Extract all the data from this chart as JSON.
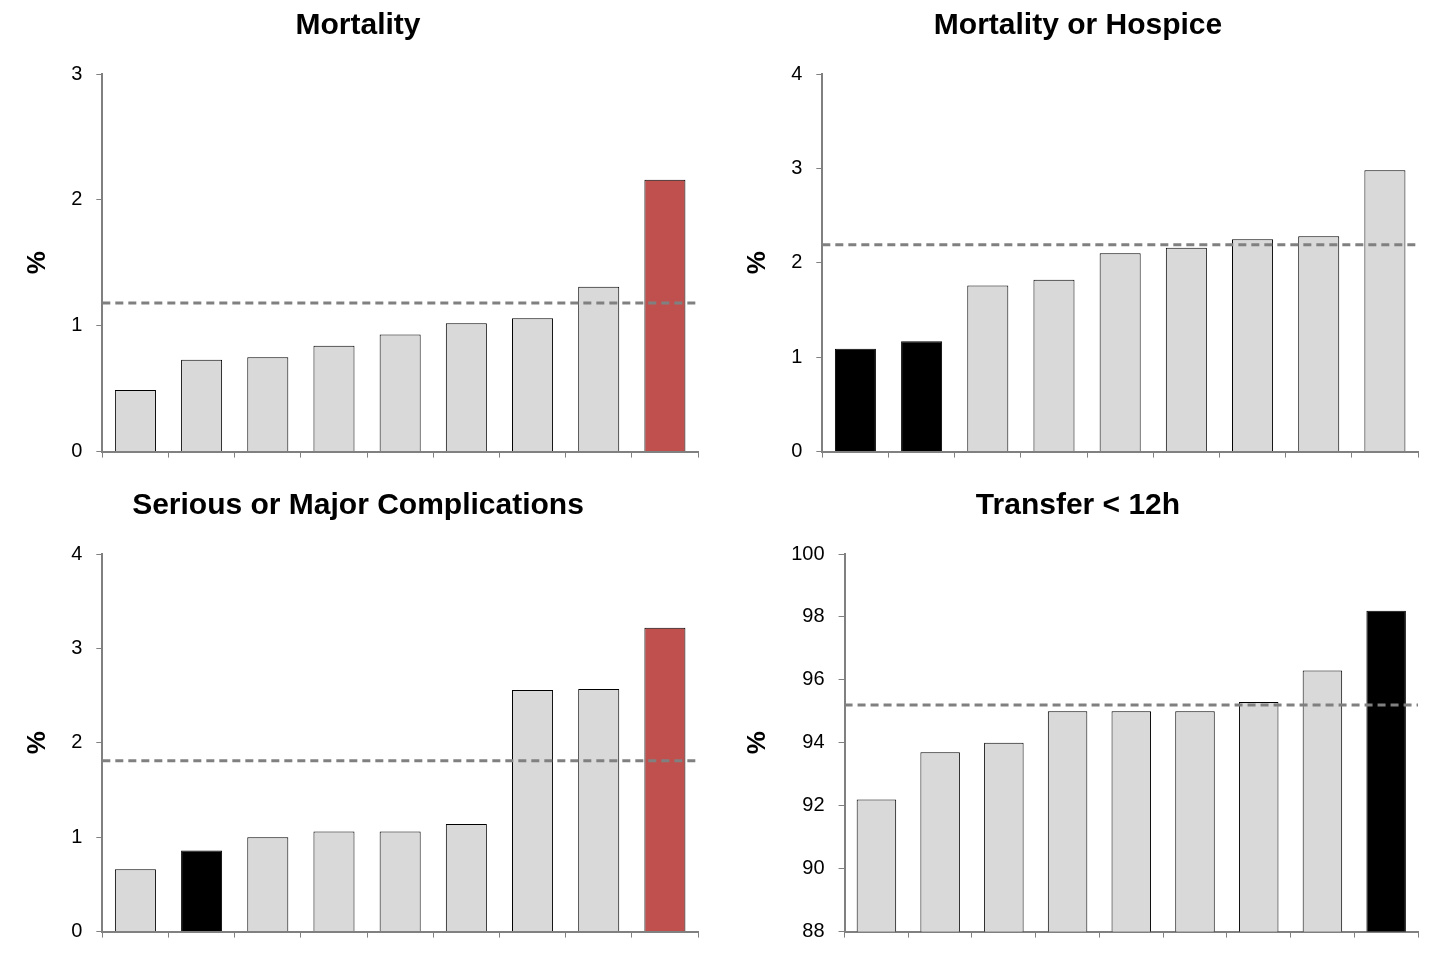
{
  "chart_data": [
    {
      "type": "bar",
      "title": "Mortality",
      "ylabel": "%",
      "categories": [
        null,
        null,
        null,
        null,
        null,
        null,
        null,
        null,
        null
      ],
      "values": [
        0.49,
        0.73,
        0.75,
        0.84,
        0.93,
        1.02,
        1.06,
        1.31,
        2.16
      ],
      "colors": [
        "#d9d9d9",
        "#d9d9d9",
        "#d9d9d9",
        "#d9d9d9",
        "#d9d9d9",
        "#d9d9d9",
        "#d9d9d9",
        "#d9d9d9",
        "#c0504d"
      ],
      "ylim": [
        0,
        3
      ],
      "yticks": [
        0,
        1,
        2,
        3
      ],
      "grid": false,
      "legend": false,
      "ref_lines": [
        {
          "axis": "y",
          "value": 1.18,
          "color": "#808080",
          "line_style": "dashed"
        }
      ]
    },
    {
      "type": "bar",
      "title": "Mortality or Hospice",
      "ylabel": "%",
      "categories": [
        null,
        null,
        null,
        null,
        null,
        null,
        null,
        null,
        null
      ],
      "values": [
        1.09,
        1.17,
        1.76,
        1.82,
        2.1,
        2.16,
        2.25,
        2.28,
        2.98
      ],
      "colors": [
        "#000000",
        "#000000",
        "#d9d9d9",
        "#d9d9d9",
        "#d9d9d9",
        "#d9d9d9",
        "#d9d9d9",
        "#d9d9d9",
        "#d9d9d9"
      ],
      "ylim": [
        0,
        4
      ],
      "yticks": [
        0,
        1,
        2,
        3,
        4
      ],
      "grid": false,
      "legend": false,
      "ref_lines": [
        {
          "axis": "y",
          "value": 2.19,
          "color": "#808080",
          "line_style": "dashed"
        }
      ]
    },
    {
      "type": "bar",
      "title": "Serious or Major Complications",
      "ylabel": "%",
      "categories": [
        null,
        null,
        null,
        null,
        null,
        null,
        null,
        null,
        null
      ],
      "values": [
        0.66,
        0.86,
        1.0,
        1.06,
        1.06,
        1.14,
        2.56,
        2.57,
        3.22
      ],
      "colors": [
        "#d9d9d9",
        "#000000",
        "#d9d9d9",
        "#d9d9d9",
        "#d9d9d9",
        "#d9d9d9",
        "#d9d9d9",
        "#d9d9d9",
        "#c0504d"
      ],
      "ylim": [
        0,
        4
      ],
      "yticks": [
        0,
        1,
        2,
        3,
        4
      ],
      "grid": false,
      "legend": false,
      "ref_lines": [
        {
          "axis": "y",
          "value": 1.81,
          "color": "#808080",
          "line_style": "dashed"
        }
      ]
    },
    {
      "type": "bar",
      "title": "Transfer < 12h",
      "ylabel": "%",
      "categories": [
        null,
        null,
        null,
        null,
        null,
        null,
        null,
        null,
        null
      ],
      "values": [
        92.2,
        93.7,
        94.0,
        95.0,
        95.0,
        95.0,
        95.3,
        96.3,
        98.2
      ],
      "colors": [
        "#d9d9d9",
        "#d9d9d9",
        "#d9d9d9",
        "#d9d9d9",
        "#d9d9d9",
        "#d9d9d9",
        "#d9d9d9",
        "#d9d9d9",
        "#000000"
      ],
      "ylim": [
        88,
        100
      ],
      "yticks": [
        88,
        90,
        92,
        94,
        96,
        98,
        100
      ],
      "grid": false,
      "legend": false,
      "ref_lines": [
        {
          "axis": "y",
          "value": 95.2,
          "color": "#808080",
          "line_style": "dashed"
        }
      ]
    }
  ]
}
